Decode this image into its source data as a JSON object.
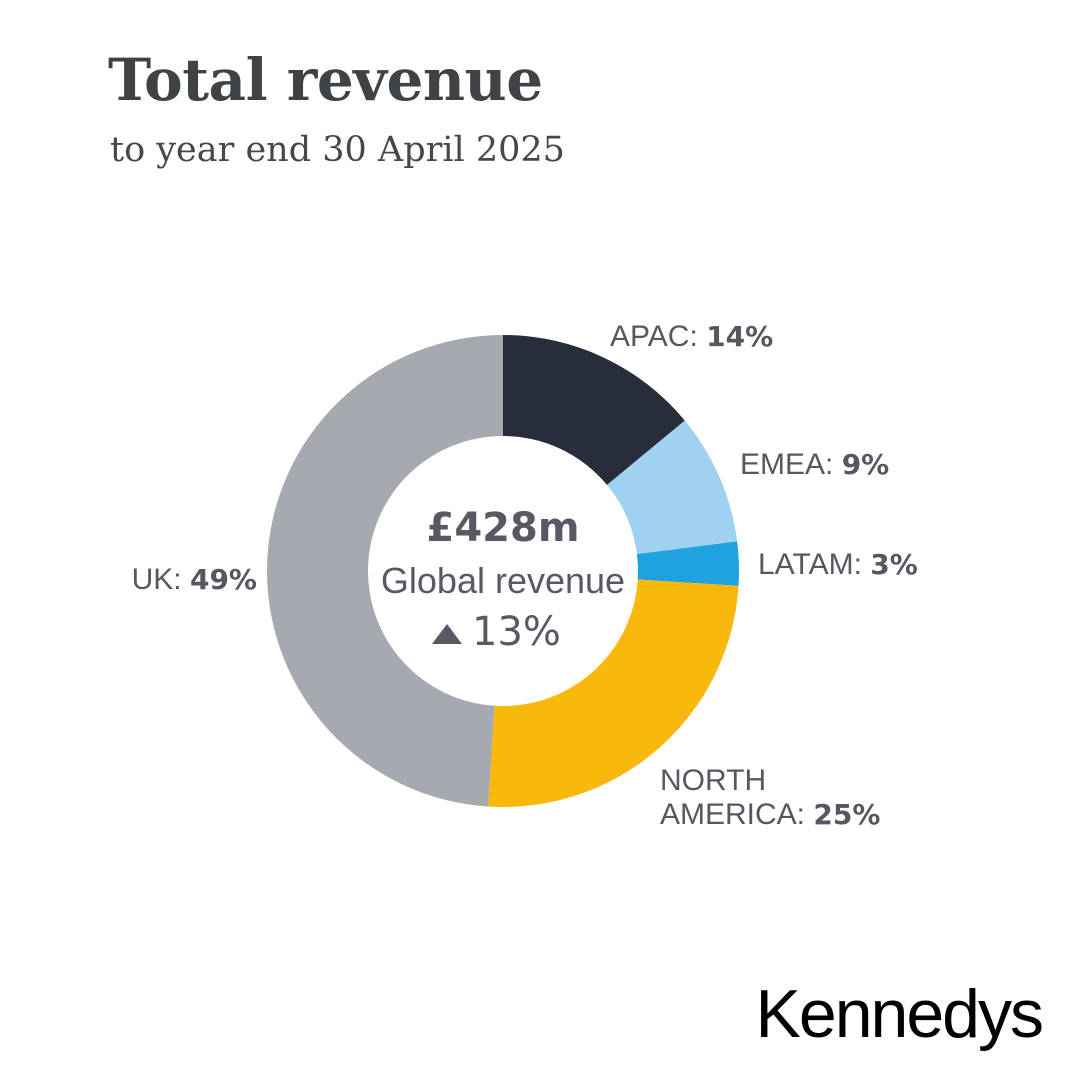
{
  "header": {
    "title": "Total revenue",
    "subtitle": "to year end 30 April 2025"
  },
  "center": {
    "value": "£428m",
    "label": "Global revenue",
    "change": "13%",
    "change_icon": "triangle-up-icon"
  },
  "brand": {
    "logo_text": "Kennedys"
  },
  "chart_data": {
    "type": "pie",
    "donut": true,
    "title": "Total revenue",
    "subtitle": "to year end 30 April 2025",
    "unit": "%",
    "slices": [
      {
        "name": "APAC",
        "value": 14,
        "display": "14%",
        "color": "#272d3b"
      },
      {
        "name": "EMEA",
        "value": 9,
        "display": "9%",
        "color": "#9fd2f1"
      },
      {
        "name": "LATAM",
        "value": 3,
        "display": "3%",
        "color": "#1fa3e0"
      },
      {
        "name": "NORTH AMERICA",
        "name_lines": [
          "NORTH",
          "AMERICA"
        ],
        "value": 25,
        "display": "25%",
        "color": "#f9b90c"
      },
      {
        "name": "UK",
        "value": 49,
        "display": "49%",
        "color": "#a7a9b0"
      }
    ]
  }
}
